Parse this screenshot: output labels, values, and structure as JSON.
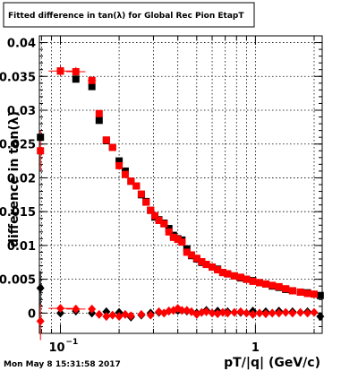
{
  "chart_data": {
    "type": "scatter",
    "title": "Fitted difference in tan(λ) for Global Rec Pion EtapT",
    "xlabel": "pT/|q| (GeV/c)",
    "ylabel": "difference in tan(λ)",
    "x_scale": "log",
    "xlim": [
      0.078,
      2.2
    ],
    "ylim": [
      -0.003,
      0.041
    ],
    "grid": true,
    "x_ticks": [
      {
        "value": 0.1,
        "label": "10",
        "exponent": "−1"
      },
      {
        "value": 1,
        "label": "1",
        "exponent": ""
      }
    ],
    "y_ticks": [
      {
        "value": 0,
        "label": "0"
      },
      {
        "value": 0.005,
        "label": "0.005"
      },
      {
        "value": 0.01,
        "label": "0.01"
      },
      {
        "value": 0.015,
        "label": "0.015"
      },
      {
        "value": 0.02,
        "label": "0.02"
      },
      {
        "value": 0.025,
        "label": "0.025"
      },
      {
        "value": 0.03,
        "label": "0.03"
      },
      {
        "value": 0.035,
        "label": "0.035"
      },
      {
        "value": 0.04,
        "label": "0.04"
      }
    ],
    "series": [
      {
        "marker": "square",
        "color": "#000000",
        "points": [
          [
            0.079,
            0.026
          ],
          [
            0.1,
            0.0358
          ],
          [
            0.12,
            0.0346
          ],
          [
            0.145,
            0.0335
          ],
          [
            0.158,
            0.0285
          ],
          [
            0.172,
            0.0255
          ],
          [
            0.185,
            0.0245
          ],
          [
            0.2,
            0.0225
          ],
          [
            0.215,
            0.021
          ],
          [
            0.23,
            0.0195
          ],
          [
            0.245,
            0.0188
          ],
          [
            0.26,
            0.0175
          ],
          [
            0.275,
            0.0165
          ],
          [
            0.29,
            0.0152
          ],
          [
            0.305,
            0.0142
          ],
          [
            0.32,
            0.0138
          ],
          [
            0.34,
            0.0133
          ],
          [
            0.36,
            0.0125
          ],
          [
            0.38,
            0.0115
          ],
          [
            0.4,
            0.011
          ],
          [
            0.42,
            0.0108
          ],
          [
            0.445,
            0.0095
          ],
          [
            0.47,
            0.0085
          ],
          [
            0.5,
            0.008
          ],
          [
            0.53,
            0.0075
          ],
          [
            0.56,
            0.0072
          ],
          [
            0.6,
            0.0068
          ],
          [
            0.64,
            0.0065
          ],
          [
            0.68,
            0.006
          ],
          [
            0.72,
            0.0058
          ],
          [
            0.78,
            0.0055
          ],
          [
            0.84,
            0.0052
          ],
          [
            0.9,
            0.005
          ],
          [
            0.97,
            0.0048
          ],
          [
            1.05,
            0.0045
          ],
          [
            1.13,
            0.0043
          ],
          [
            1.22,
            0.004
          ],
          [
            1.32,
            0.0038
          ],
          [
            1.43,
            0.0035
          ],
          [
            1.55,
            0.0033
          ],
          [
            1.7,
            0.0031
          ],
          [
            1.85,
            0.003
          ],
          [
            2.15,
            0.0026
          ]
        ]
      },
      {
        "marker": "square",
        "color": "#ff0000",
        "points": [
          [
            0.079,
            0.024
          ],
          [
            0.1,
            0.0358
          ],
          [
            0.12,
            0.0357
          ],
          [
            0.145,
            0.0344
          ],
          [
            0.158,
            0.0295
          ],
          [
            0.172,
            0.0256
          ],
          [
            0.185,
            0.0245
          ],
          [
            0.2,
            0.0218
          ],
          [
            0.215,
            0.0205
          ],
          [
            0.23,
            0.0195
          ],
          [
            0.245,
            0.0188
          ],
          [
            0.26,
            0.0176
          ],
          [
            0.275,
            0.0164
          ],
          [
            0.29,
            0.0152
          ],
          [
            0.305,
            0.0144
          ],
          [
            0.32,
            0.0137
          ],
          [
            0.34,
            0.0132
          ],
          [
            0.36,
            0.012
          ],
          [
            0.38,
            0.0112
          ],
          [
            0.4,
            0.0109
          ],
          [
            0.42,
            0.0105
          ],
          [
            0.445,
            0.009
          ],
          [
            0.47,
            0.0086
          ],
          [
            0.5,
            0.0081
          ],
          [
            0.53,
            0.0076
          ],
          [
            0.56,
            0.0072
          ],
          [
            0.6,
            0.0068
          ],
          [
            0.64,
            0.0064
          ],
          [
            0.68,
            0.006
          ],
          [
            0.72,
            0.0058
          ],
          [
            0.78,
            0.0055
          ],
          [
            0.84,
            0.0053
          ],
          [
            0.9,
            0.005
          ],
          [
            0.97,
            0.0047
          ],
          [
            1.05,
            0.0045
          ],
          [
            1.13,
            0.0043
          ],
          [
            1.22,
            0.0041
          ],
          [
            1.32,
            0.0039
          ],
          [
            1.43,
            0.0036
          ],
          [
            1.55,
            0.0033
          ],
          [
            1.7,
            0.0031
          ],
          [
            1.85,
            0.0029
          ],
          [
            2.0,
            0.0028
          ]
        ]
      },
      {
        "marker": "diamond",
        "color": "#000000",
        "points": [
          [
            0.079,
            0.0037
          ],
          [
            0.1,
            0.0
          ],
          [
            0.12,
            0.0003
          ],
          [
            0.145,
            0.0
          ],
          [
            0.172,
            0.0002
          ],
          [
            0.2,
            0.0001
          ],
          [
            0.23,
            -0.0006
          ],
          [
            0.26,
            -0.0003
          ],
          [
            0.29,
            0.0
          ],
          [
            0.32,
            0.0001
          ],
          [
            0.36,
            0.0003
          ],
          [
            0.4,
            0.0004
          ],
          [
            0.445,
            0.0003
          ],
          [
            0.5,
            0.0
          ],
          [
            0.56,
            0.0004
          ],
          [
            0.64,
            0.0003
          ],
          [
            0.72,
            0.0002
          ],
          [
            0.84,
            0.0001
          ],
          [
            0.97,
            0.0003
          ],
          [
            1.13,
            0.0002
          ],
          [
            1.32,
            0.0003
          ],
          [
            1.55,
            0.0002
          ],
          [
            1.85,
            0.0002
          ],
          [
            2.15,
            -0.0005
          ]
        ]
      },
      {
        "marker": "diamond",
        "color": "#ff0000",
        "points": [
          [
            0.079,
            -0.0012
          ],
          [
            0.1,
            0.0007
          ],
          [
            0.12,
            0.0006
          ],
          [
            0.145,
            0.0006
          ],
          [
            0.158,
            -0.0002
          ],
          [
            0.172,
            -0.0005
          ],
          [
            0.185,
            -0.0003
          ],
          [
            0.2,
            -0.0005
          ],
          [
            0.215,
            -0.0002
          ],
          [
            0.23,
            -0.0004
          ],
          [
            0.26,
            -0.0002
          ],
          [
            0.29,
            -0.0003
          ],
          [
            0.32,
            0.0002
          ],
          [
            0.34,
            0.0
          ],
          [
            0.36,
            0.0003
          ],
          [
            0.38,
            0.0004
          ],
          [
            0.4,
            0.0007
          ],
          [
            0.42,
            0.0004
          ],
          [
            0.445,
            0.0004
          ],
          [
            0.47,
            0.0002
          ],
          [
            0.5,
            -0.0002
          ],
          [
            0.53,
            0.0001
          ],
          [
            0.56,
            0.0002
          ],
          [
            0.6,
            0.0
          ],
          [
            0.64,
            -0.0001
          ],
          [
            0.68,
            0.0001
          ],
          [
            0.72,
            0.0
          ],
          [
            0.78,
            0.0001
          ],
          [
            0.84,
            0.0002
          ],
          [
            0.9,
            0.0
          ],
          [
            0.97,
            -0.0002
          ],
          [
            1.05,
            0.0
          ],
          [
            1.13,
            -0.0001
          ],
          [
            1.22,
            0.0
          ],
          [
            1.32,
            0.0
          ],
          [
            1.43,
            0.0001
          ],
          [
            1.55,
            0.0
          ],
          [
            1.7,
            0.0001
          ],
          [
            1.85,
            0.0
          ],
          [
            2.0,
            0.0001
          ]
        ]
      }
    ],
    "error_bars": [
      {
        "series": 1,
        "x": 0.079,
        "xerr_factor": 1.03,
        "yerr": 0.003
      },
      {
        "series": 1,
        "x": 0.1,
        "xerr_factor": 1.15,
        "yerr": 0.0008
      },
      {
        "series": 1,
        "x": 0.12,
        "xerr_factor": 1.12,
        "yerr": 0.0007
      },
      {
        "series": 1,
        "x": 0.145,
        "xerr_factor": 1.05,
        "yerr": 0.0006
      },
      {
        "series": 3,
        "x": 0.079,
        "xerr_factor": 1.0,
        "yerr": 0.0028
      },
      {
        "series": 3,
        "x": 0.1,
        "xerr_factor": 1.15,
        "yerr": 0.0004
      },
      {
        "series": 3,
        "x": 0.12,
        "xerr_factor": 1.12,
        "yerr": 0.0003
      },
      {
        "series": 2,
        "x": 0.079,
        "xerr_factor": 1.0,
        "yerr": 0.0025
      }
    ]
  },
  "timestamp": "Mon May  8 15:31:58 2017"
}
